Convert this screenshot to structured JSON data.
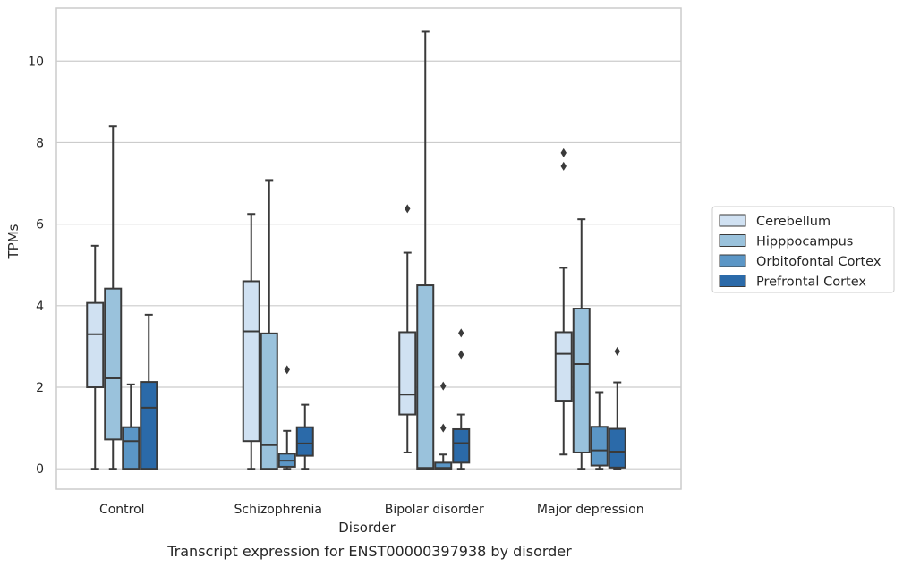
{
  "chart_data": {
    "type": "boxplot",
    "title": "",
    "caption": "Transcript expression for ENST00000397938 by disorder",
    "xlabel": "Disorder",
    "ylabel": "TPMs",
    "ylim": [
      -0.5,
      11.3
    ],
    "yticks": [
      0,
      2,
      4,
      6,
      8,
      10
    ],
    "grid": "horizontal",
    "legend_position": "right",
    "categories": [
      "Control",
      "Schizophrenia",
      "Bipolar disorder",
      "Major depression"
    ],
    "series": [
      {
        "name": "Cerebellum",
        "color": "#d0e1f2",
        "boxes": [
          {
            "whislo": 0.0,
            "q1": 2.0,
            "med": 3.3,
            "q3": 4.07,
            "whishi": 5.47,
            "fliers": []
          },
          {
            "whislo": 0.0,
            "q1": 0.68,
            "med": 3.37,
            "q3": 4.6,
            "whishi": 6.25,
            "fliers": []
          },
          {
            "whislo": 0.4,
            "q1": 1.33,
            "med": 1.82,
            "q3": 3.35,
            "whishi": 5.3,
            "fliers": [
              6.38
            ]
          },
          {
            "whislo": 0.35,
            "q1": 1.67,
            "med": 2.82,
            "q3": 3.35,
            "whishi": 4.93,
            "fliers": [
              7.42,
              7.75
            ]
          }
        ]
      },
      {
        "name": "Hipppocampus",
        "color": "#9ac2dc",
        "boxes": [
          {
            "whislo": 0.0,
            "q1": 0.72,
            "med": 2.22,
            "q3": 4.42,
            "whishi": 8.4,
            "fliers": []
          },
          {
            "whislo": 0.0,
            "q1": 0.0,
            "med": 0.58,
            "q3": 3.32,
            "whishi": 7.08,
            "fliers": []
          },
          {
            "whislo": 0.0,
            "q1": 0.0,
            "med": 0.02,
            "q3": 4.5,
            "whishi": 10.72,
            "fliers": []
          },
          {
            "whislo": 0.0,
            "q1": 0.4,
            "med": 2.57,
            "q3": 3.93,
            "whishi": 6.12,
            "fliers": []
          }
        ]
      },
      {
        "name": "Orbitofontal Cortex",
        "color": "#5b96c6",
        "boxes": [
          {
            "whislo": 0.0,
            "q1": 0.0,
            "med": 0.68,
            "q3": 1.02,
            "whishi": 2.07,
            "fliers": []
          },
          {
            "whislo": 0.0,
            "q1": 0.05,
            "med": 0.2,
            "q3": 0.37,
            "whishi": 0.93,
            "fliers": [
              2.43
            ]
          },
          {
            "whislo": 0.0,
            "q1": 0.0,
            "med": 0.02,
            "q3": 0.15,
            "whishi": 0.35,
            "fliers": [
              1.0,
              2.03
            ]
          },
          {
            "whislo": 0.0,
            "q1": 0.08,
            "med": 0.45,
            "q3": 1.03,
            "whishi": 1.88,
            "fliers": []
          }
        ]
      },
      {
        "name": "Prefrontal Cortex",
        "color": "#2b6aa9",
        "boxes": [
          {
            "whislo": 0.0,
            "q1": 0.0,
            "med": 1.5,
            "q3": 2.13,
            "whishi": 3.78,
            "fliers": []
          },
          {
            "whislo": 0.0,
            "q1": 0.32,
            "med": 0.62,
            "q3": 1.02,
            "whishi": 1.57,
            "fliers": []
          },
          {
            "whislo": 0.0,
            "q1": 0.15,
            "med": 0.63,
            "q3": 0.97,
            "whishi": 1.33,
            "fliers": [
              2.8,
              3.33
            ]
          },
          {
            "whislo": 0.0,
            "q1": 0.03,
            "med": 0.42,
            "q3": 0.98,
            "whishi": 2.12,
            "fliers": [
              2.88
            ]
          }
        ]
      }
    ]
  }
}
